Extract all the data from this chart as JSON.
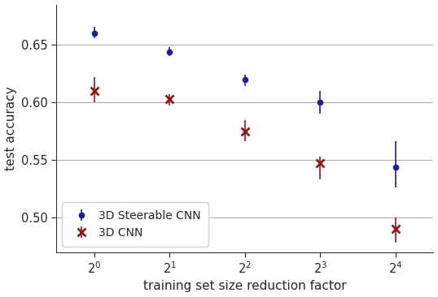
{
  "x_positions": [
    0,
    1,
    2,
    3,
    4
  ],
  "x_labels": [
    "$2^0$",
    "$2^1$",
    "$2^2$",
    "$2^3$",
    "$2^4$"
  ],
  "steerable_means": [
    0.66,
    0.644,
    0.62,
    0.6,
    0.544
  ],
  "steerable_yerr_lo": [
    0.004,
    0.004,
    0.006,
    0.01,
    0.018
  ],
  "steerable_yerr_hi": [
    0.006,
    0.004,
    0.004,
    0.01,
    0.022
  ],
  "cnn_means": [
    0.61,
    0.603,
    0.575,
    0.547,
    0.49
  ],
  "cnn_yerr_lo": [
    0.01,
    0.006,
    0.009,
    0.014,
    0.012
  ],
  "cnn_yerr_hi": [
    0.012,
    0.004,
    0.01,
    0.006,
    0.01
  ],
  "steerable_color": "#1f1f9b",
  "cnn_color": "#8b1a1a",
  "steerable_label": "3D Steerable CNN",
  "cnn_label": "3D CNN",
  "xlabel": "training set size reduction factor",
  "ylabel": "test accuracy",
  "ylim": [
    0.47,
    0.685
  ],
  "yticks": [
    0.5,
    0.55,
    0.6,
    0.65
  ],
  "grid_color": "#b0b0b0",
  "bg_color": "#ffffff"
}
